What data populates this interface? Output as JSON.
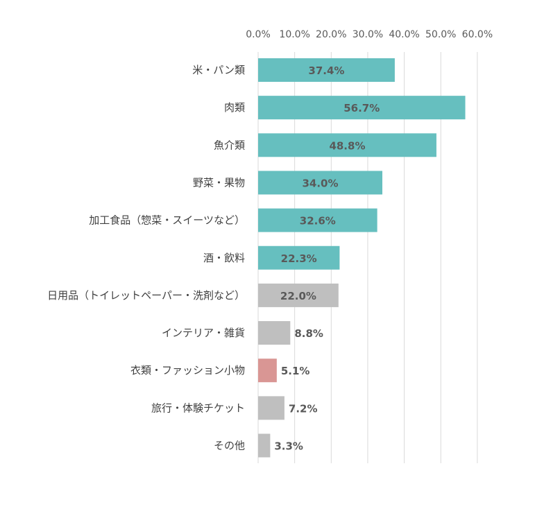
{
  "chart_data": {
    "type": "bar",
    "orientation": "horizontal",
    "title": "",
    "xlabel": "",
    "ylabel": "",
    "xlim": [
      0,
      60
    ],
    "x_axis_position": "top",
    "grid": true,
    "legend": "none",
    "ticks": [
      "0.0%",
      "10.0%",
      "20.0%",
      "30.0%",
      "40.0%",
      "50.0%",
      "60.0%"
    ],
    "categories": [
      "米・パン類",
      "肉類",
      "魚介類",
      "野菜・果物",
      "加工食品（惣菜・スイーツなど）",
      "酒・飲料",
      "日用品（トイレットペーパー・洗剤など）",
      "インテリア・雑貨",
      "衣類・ファッション小物",
      "旅行・体験チケット",
      "その他"
    ],
    "values": [
      37.4,
      56.7,
      48.8,
      34.0,
      32.6,
      22.3,
      22.0,
      8.8,
      5.1,
      7.2,
      3.3
    ],
    "value_labels": [
      "37.4%",
      "56.7%",
      "48.8%",
      "34.0%",
      "32.6%",
      "22.3%",
      "22.0%",
      "8.8%",
      "5.1%",
      "7.2%",
      "3.3%"
    ],
    "bar_colors": [
      "#66bfbf",
      "#66bfbf",
      "#66bfbf",
      "#66bfbf",
      "#66bfbf",
      "#66bfbf",
      "#bfbfbf",
      "#bfbfbf",
      "#d99694",
      "#bfbfbf",
      "#bfbfbf"
    ]
  },
  "colors": {
    "teal": "#66bfbf",
    "gray": "#bfbfbf",
    "pink": "#d99694",
    "gridline": "#d9d9d9",
    "label_text": "#595959"
  }
}
